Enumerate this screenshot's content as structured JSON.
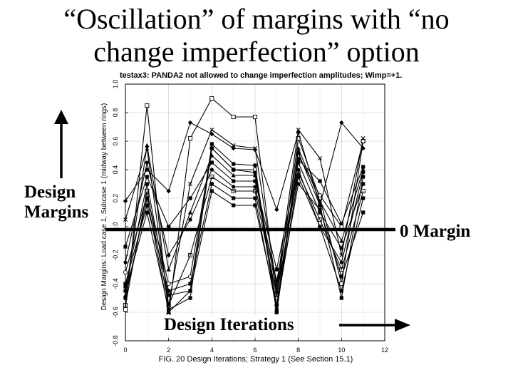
{
  "slide": {
    "title_line1": "“Oscillation” of margins with “no",
    "title_line2": "change imperfection” option"
  },
  "annotations": {
    "design_margins_line1": "Design",
    "design_margins_line2": "Margins",
    "zero_margin": "0 Margin",
    "design_iterations": "Design Iterations"
  },
  "chart_data": {
    "type": "line",
    "title": "testax3: PANDA2 not allowed to change imperfection amplitudes; Wimp=+1.",
    "xlabel": "FIG. 20 Design Iterations; Strategy 1 (See Section 15.1)",
    "ylabel": "Design Margins: Load case 1, Subcase 1 (midway between rings)",
    "xlim": [
      0,
      12
    ],
    "ylim": [
      -0.8,
      1.0
    ],
    "xticks": [
      "0",
      "2",
      "4",
      "6",
      "8",
      "10",
      "12"
    ],
    "yticks": [
      "-0.8",
      "-0.6",
      "-0.4",
      "-0.2",
      "0.0",
      "0.2",
      "0.4",
      "0.6",
      "0.8",
      "1.0"
    ],
    "grid": true,
    "x": [
      0,
      1,
      2,
      3,
      4,
      5,
      6,
      7,
      8,
      9,
      10,
      11
    ],
    "series": [
      {
        "marker": "square",
        "values": [
          -0.58,
          0.85,
          -0.62,
          0.62,
          0.9,
          0.77,
          0.77,
          -0.5,
          0.62,
          0.2,
          -0.4,
          0.6
        ]
      },
      {
        "marker": "cross",
        "values": [
          0.05,
          0.55,
          -0.55,
          0.3,
          0.68,
          0.57,
          0.55,
          -0.42,
          0.68,
          0.48,
          -0.2,
          0.62
        ]
      },
      {
        "marker": "diamond",
        "values": [
          0.18,
          0.4,
          0.25,
          0.73,
          0.65,
          0.55,
          0.54,
          0.12,
          0.66,
          0.15,
          0.73,
          0.55
        ]
      },
      {
        "marker": "filled-square",
        "values": [
          -0.42,
          0.3,
          -0.48,
          -0.45,
          0.58,
          0.44,
          0.43,
          -0.6,
          0.47,
          0.32,
          0.02,
          0.42
        ]
      },
      {
        "marker": "circle",
        "values": [
          -0.32,
          0.22,
          -0.4,
          -0.35,
          0.55,
          0.4,
          0.4,
          -0.55,
          0.5,
          0.22,
          0.0,
          0.6
        ]
      },
      {
        "marker": "triangle",
        "values": [
          -0.48,
          0.57,
          -0.3,
          0.1,
          0.5,
          0.36,
          0.36,
          -0.45,
          0.55,
          0.18,
          -0.1,
          0.4
        ]
      },
      {
        "marker": "filled-square",
        "values": [
          -0.14,
          0.35,
          0.0,
          0.2,
          0.45,
          0.32,
          0.32,
          -0.3,
          0.45,
          0.1,
          -0.15,
          0.3
        ]
      },
      {
        "marker": "filled-circle",
        "values": [
          -0.25,
          0.45,
          -0.2,
          0.05,
          0.4,
          0.28,
          0.28,
          -0.38,
          0.4,
          0.0,
          -0.25,
          0.38
        ]
      },
      {
        "marker": "open-square",
        "values": [
          -0.55,
          0.25,
          -0.55,
          -0.2,
          0.35,
          0.25,
          0.25,
          -0.48,
          0.38,
          0.05,
          -0.3,
          0.25
        ]
      },
      {
        "marker": "filled-square",
        "values": [
          -0.4,
          0.15,
          -0.45,
          -0.4,
          0.3,
          0.2,
          0.2,
          -0.58,
          0.35,
          0.0,
          -0.45,
          0.2
        ]
      },
      {
        "marker": "filled-square",
        "values": [
          -0.5,
          0.2,
          -0.6,
          -0.45,
          0.25,
          0.15,
          0.15,
          -0.55,
          0.3,
          0.12,
          -0.35,
          0.1
        ]
      },
      {
        "marker": "filled-square",
        "values": [
          -0.45,
          0.1,
          -0.58,
          -0.5,
          0.55,
          0.4,
          0.38,
          -0.6,
          0.52,
          0.15,
          -0.5,
          0.35
        ]
      }
    ]
  }
}
